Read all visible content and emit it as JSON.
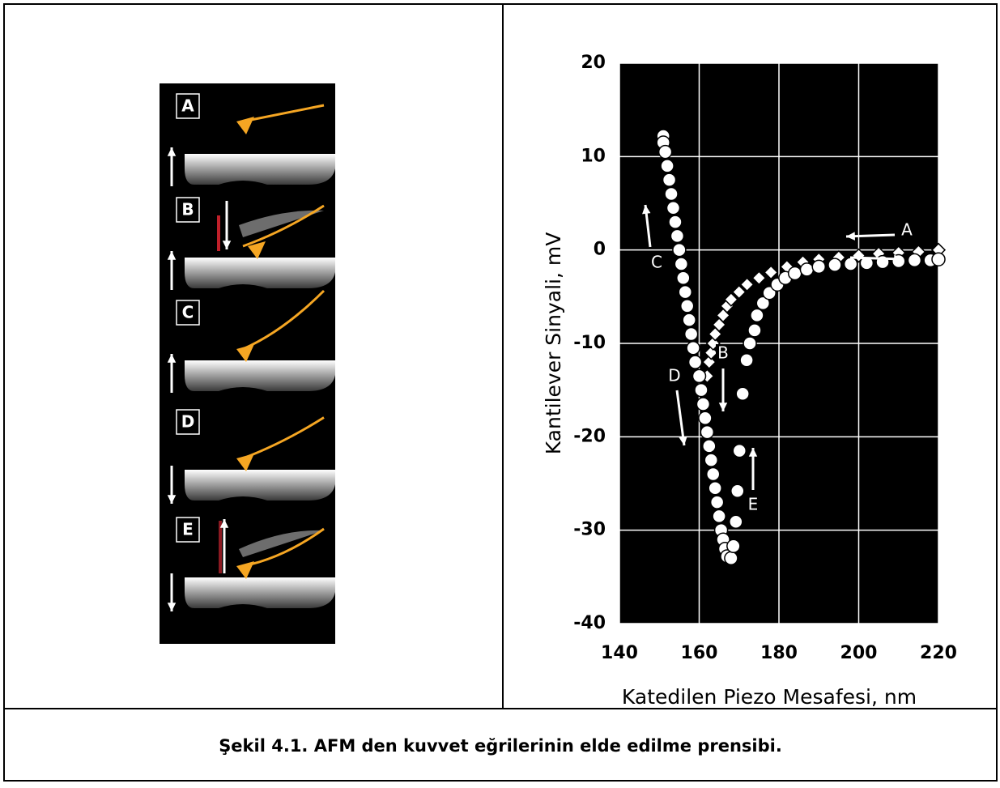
{
  "diagram": {
    "labels": [
      "A",
      "B",
      "C",
      "D",
      "E"
    ]
  },
  "chart_data": {
    "type": "scatter",
    "xlabel": "Katedilen Piezo Mesafesi, nm",
    "ylabel": "Kantilever Sinyali, mV",
    "xlim": [
      140,
      220
    ],
    "xticks": [
      140,
      160,
      180,
      200,
      220
    ],
    "ylim": [
      -40,
      20
    ],
    "yticks": [
      -40,
      -30,
      -20,
      -10,
      0,
      10,
      20
    ],
    "grid": true,
    "annotations": [
      "A",
      "B",
      "C",
      "D",
      "E"
    ],
    "series": [
      {
        "color": "#ffffff",
        "marker": "circle",
        "x": [
          151,
          151,
          151.5,
          152,
          152.5,
          153,
          153.5,
          154,
          154.5,
          155,
          155.5,
          156,
          156.5,
          157,
          157.5,
          158,
          158.5,
          159,
          160,
          160.5,
          161,
          161.5,
          162,
          162.5,
          163,
          163.5,
          164,
          164.5,
          165,
          165.5,
          166,
          166.5,
          167,
          168,
          168.6,
          169.2,
          169.6,
          170.1,
          170.9,
          171.9,
          172.7,
          173.9,
          174.5,
          176,
          177.6,
          179.6,
          181.6,
          184,
          187,
          190,
          194,
          198,
          202,
          206,
          210,
          214,
          218,
          220
        ],
        "y": [
          12.2,
          11.5,
          10.5,
          9,
          7.5,
          6,
          4.5,
          3,
          1.5,
          0,
          -1.5,
          -3,
          -4.5,
          -6,
          -7.5,
          -9,
          -10.5,
          -12,
          -13.5,
          -15,
          -16.5,
          -18,
          -19.5,
          -21,
          -22.5,
          -24,
          -25.5,
          -27,
          -28.5,
          -30,
          -31,
          -32,
          -32.8,
          -33,
          -31.7,
          -29.1,
          -25.8,
          -21.5,
          -15.4,
          -11.8,
          -10,
          -8.6,
          -7,
          -5.7,
          -4.6,
          -3.7,
          -3,
          -2.5,
          -2.1,
          -1.8,
          -1.6,
          -1.5,
          -1.4,
          -1.3,
          -1.2,
          -1.1,
          -1.1,
          -1
        ]
      },
      {
        "color": "#ffffff",
        "marker": "diamond",
        "x": [
          162,
          162.5,
          163,
          163.5,
          164,
          165,
          166,
          167,
          168,
          170,
          172,
          175,
          178,
          182,
          186,
          190,
          195,
          200,
          205,
          210,
          215,
          220
        ],
        "y": [
          -13.5,
          -12,
          -11,
          -10,
          -9,
          -8,
          -7,
          -6,
          -5.3,
          -4.5,
          -3.7,
          -3,
          -2.4,
          -1.8,
          -1.3,
          -1,
          -0.8,
          -0.6,
          -0.4,
          -0.3,
          -0.2,
          0
        ]
      }
    ]
  },
  "caption": "Şekil 4.1. AFM den kuvvet eğrilerinin elde edilme prensibi."
}
